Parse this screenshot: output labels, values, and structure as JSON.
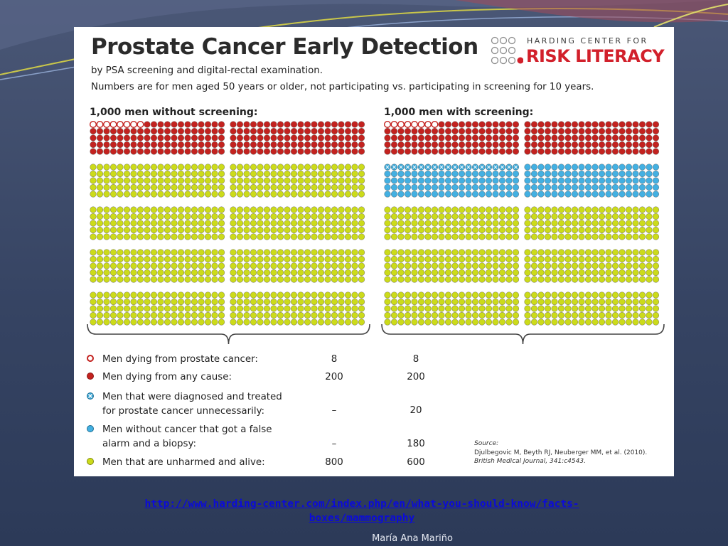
{
  "infographic": {
    "title": "Prostate Cancer Early Detection",
    "subtitle": "by PSA screening and digital-rectal examination.",
    "description": "Numbers are for men aged 50 years or older, not participating vs. participating in screening for 10 years.",
    "logo": {
      "top": "HARDING CENTER FOR",
      "main": "RISK LITERACY",
      "accent_color": "#d2202b"
    },
    "panels": [
      {
        "heading": "1,000 men without screening:"
      },
      {
        "heading": "1,000 men with screening:"
      }
    ],
    "legend": [
      {
        "label_lines": [
          "Men dying from prostate cancer:"
        ],
        "without": "8",
        "with": "8",
        "color": "#ffffff",
        "icon": "open-circle-red-border"
      },
      {
        "label_lines": [
          "Men dying from any cause:"
        ],
        "without": "200",
        "with": "200",
        "color": "#c3221f",
        "icon": "red-dot"
      },
      {
        "label_lines": [
          "Men that were diagnosed and treated",
          "for prostate cancer unnecessarily:"
        ],
        "without": "–",
        "with": "20",
        "color": "#3aa6d6",
        "icon": "blue-x-dot"
      },
      {
        "label_lines": [
          "Men without cancer that got a false",
          "alarm and a biopsy:"
        ],
        "without": "–",
        "with": "180",
        "color": "#43b0e2",
        "icon": "blue-dot"
      },
      {
        "label_lines": [
          "Men that are unharmed and alive:"
        ],
        "without": "800",
        "with": "600",
        "color": "#ccdb1a",
        "icon": "yellow-green-dot"
      }
    ],
    "source": {
      "label": "Source:",
      "line1": "Djulbegovic M, Beyth RJ, Neuberger MM, et al. (2010).",
      "line2": "British Medical Journal, 341:c4543."
    }
  },
  "footer": {
    "link_line1": "http://www.harding-center.com/index.php/en/what-you-should-know/facts-",
    "link_line2": "boxes/mammography",
    "author": "María Ana Mariño"
  },
  "chart_data": {
    "type": "icon_array",
    "total_per_panel": 1000,
    "series": [
      {
        "name": "1,000 men without screening:",
        "values": {
          "prostate_cancer_deaths": 8,
          "deaths_any_cause": 200,
          "unnecessary_treatment": 0,
          "false_alarm_biopsy": 0,
          "unharmed_alive": 800
        }
      },
      {
        "name": "1,000 men with screening:",
        "values": {
          "prostate_cancer_deaths": 8,
          "deaths_any_cause": 200,
          "unnecessary_treatment": 20,
          "false_alarm_biopsy": 180,
          "unharmed_alive": 600
        }
      }
    ],
    "colors": {
      "dead": "#c3221f",
      "unnecessary": "#3aa6d6",
      "false_alarm": "#43b0e2",
      "alive": "#ccdb1a"
    }
  }
}
